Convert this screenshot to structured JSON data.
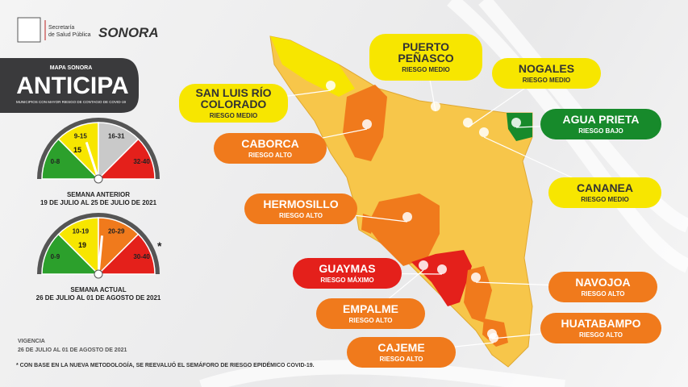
{
  "header": {
    "agency_line1": "Secretaría",
    "agency_line2": "de Salud Pública",
    "brand": "SONORA"
  },
  "title": {
    "kicker": "MAPA SONORA",
    "main": "ANTICIPA",
    "sub": "MUNICIPIOS CON MAYOR RIESGO DE CONTAGIO DE COVID-19"
  },
  "gauges": [
    {
      "segments": [
        "0-8",
        "9-15",
        "16-31",
        "32-40"
      ],
      "value": "15",
      "label": "SEMANA ANTERIOR",
      "dates": "19 DE JULIO AL 25 DE JULIO DE 2021"
    },
    {
      "segments": [
        "0-9",
        "10-19",
        "20-29",
        "30-40"
      ],
      "value": "19",
      "label": "SEMANA ACTUAL",
      "dates": "26 DE JULIO AL 01 DE AGOSTO DE 2021",
      "mark": "*"
    }
  ],
  "municipalities": [
    {
      "name": "PUERTO PEÑASCO",
      "risk": "RIESGO MEDIO",
      "color": "#f7e600"
    },
    {
      "name": "NOGALES",
      "risk": "RIESGO MEDIO",
      "color": "#f7e600"
    },
    {
      "name": "SAN LUIS RÍO COLORADO",
      "risk": "RIESGO MEDIO",
      "color": "#f7e600"
    },
    {
      "name": "AGUA PRIETA",
      "risk": "RIESGO BAJO",
      "color": "#178a2b"
    },
    {
      "name": "CABORCA",
      "risk": "RIESGO ALTO",
      "color": "#f07a1c"
    },
    {
      "name": "CANANEA",
      "risk": "RIESGO MEDIO",
      "color": "#f7e600"
    },
    {
      "name": "HERMOSILLO",
      "risk": "RIESGO ALTO",
      "color": "#f07a1c"
    },
    {
      "name": "GUAYMAS",
      "risk": "RIESGO MÁXIMO",
      "color": "#e4201b"
    },
    {
      "name": "NAVOJOA",
      "risk": "RIESGO ALTO",
      "color": "#f07a1c"
    },
    {
      "name": "EMPALME",
      "risk": "RIESGO ALTO",
      "color": "#f07a1c"
    },
    {
      "name": "HUATABAMPO",
      "risk": "RIESGO ALTO",
      "color": "#f07a1c"
    },
    {
      "name": "CAJEME",
      "risk": "RIESGO ALTO",
      "color": "#f07a1c"
    }
  ],
  "footer": {
    "validity_label": "VIGENCIA",
    "validity": "26 DE JULIO AL 01 DE AGOSTO DE 2021",
    "note": "* CON BASE EN LA NUEVA METODOLOGÍA, SE REEVALUÓ EL SEMÁFORO DE RIESGO EPIDÉMICO COVID-19."
  }
}
